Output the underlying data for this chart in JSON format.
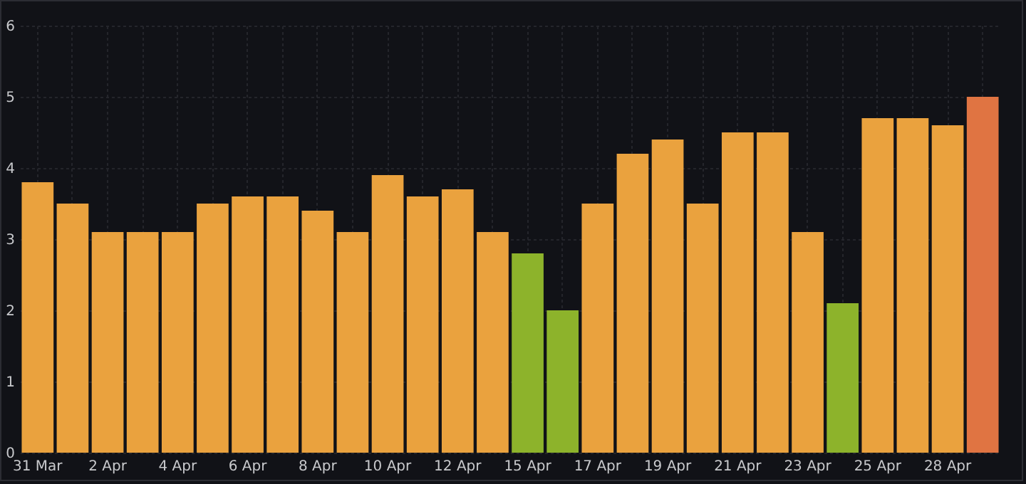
{
  "chart_data": {
    "type": "bar",
    "categories": [
      "31 Mar",
      null,
      "2 Apr",
      null,
      "4 Apr",
      null,
      "6 Apr",
      null,
      "8 Apr",
      null,
      "10 Apr",
      null,
      "12 Apr",
      null,
      "15 Apr",
      null,
      "17 Apr",
      null,
      "19 Apr",
      null,
      "21 Apr",
      null,
      "23 Apr",
      null,
      "25 Apr",
      null,
      "28 Apr",
      null
    ],
    "values": [
      3.8,
      3.5,
      3.1,
      3.1,
      3.1,
      3.5,
      3.6,
      3.6,
      3.4,
      3.1,
      3.9,
      3.6,
      3.7,
      3.1,
      2.8,
      2.0,
      3.5,
      4.2,
      4.4,
      3.5,
      4.5,
      4.5,
      3.1,
      2.1,
      4.7,
      4.7,
      4.6,
      5.0
    ],
    "colors": [
      "#eaa23e",
      "#eaa23e",
      "#eaa23e",
      "#eaa23e",
      "#eaa23e",
      "#eaa23e",
      "#eaa23e",
      "#eaa23e",
      "#eaa23e",
      "#eaa23e",
      "#eaa23e",
      "#eaa23e",
      "#eaa23e",
      "#eaa23e",
      "#8db32b",
      "#8db32b",
      "#eaa23e",
      "#eaa23e",
      "#eaa23e",
      "#eaa23e",
      "#eaa23e",
      "#eaa23e",
      "#eaa23e",
      "#8db32b",
      "#eaa23e",
      "#eaa23e",
      "#eaa23e",
      "#e07442"
    ],
    "ylim": [
      0,
      6
    ],
    "yticks": [
      0,
      1,
      2,
      3,
      4,
      5,
      6
    ],
    "grid": true
  }
}
